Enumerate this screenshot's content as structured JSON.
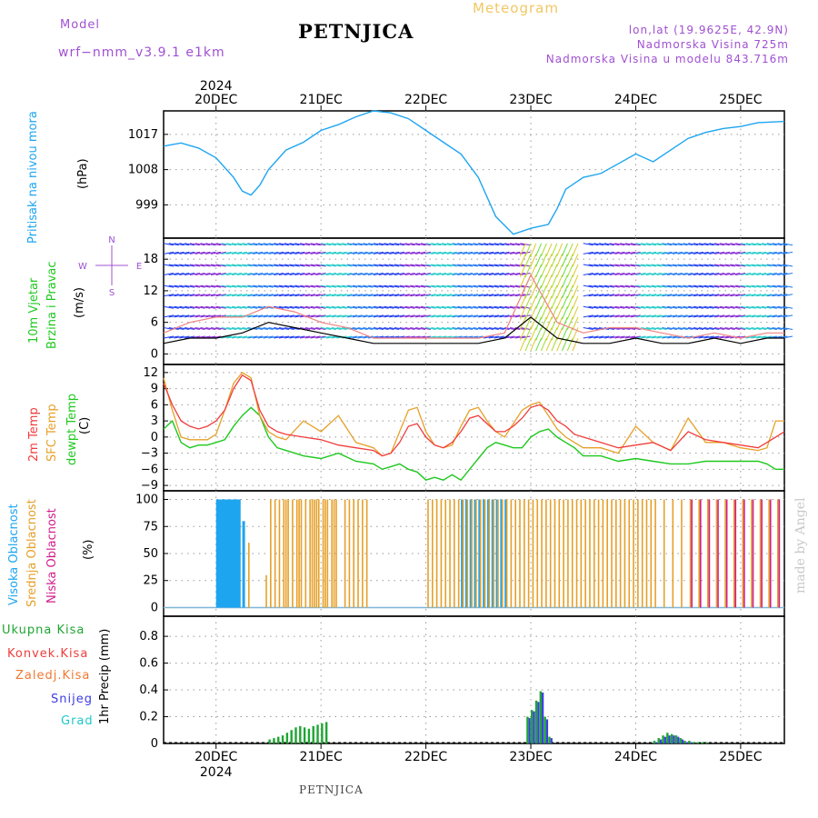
{
  "header": {
    "model_label": "Model",
    "model_name": "wrf−nmm_v3.9.1  e1km",
    "title": "PETNJICA",
    "subtitle": "Meteogram",
    "lonlat": "lon,lat (19.9625E, 42.9N)",
    "altitude": "Nadmorska Visina 725m",
    "model_altitude": "Nadmorska Visina u modelu 843.716m"
  },
  "footer": {
    "station": "PETNJICA",
    "credit": "made by Angel"
  },
  "colors": {
    "pressure": "#1ea5f0",
    "temp2m": "#f03c3c",
    "sfc": "#e6a028",
    "dewpt": "#1ec81e",
    "high_cloud": "#1ea5f0",
    "mid_cloud": "#e6a028",
    "low_cloud": "#d21e8c",
    "total_precip": "#1ea532",
    "snow": "#3c3ce6",
    "grad": "#1ec8c8",
    "conv": "#f03c3c",
    "frz": "#f07832",
    "header_purple": "#a050d2",
    "subtitle": "#f0c864"
  },
  "x_axis": {
    "year": "2024",
    "days": [
      "20DEC",
      "21DEC",
      "22DEC",
      "23DEC",
      "24DEC",
      "25DEC"
    ]
  },
  "panels": {
    "pressure": {
      "label": "Pritisak na nivou mora",
      "unit": "(hPa)",
      "ticks": [
        "1017",
        "1008",
        "999"
      ]
    },
    "wind": {
      "label1": "10m Vjetar",
      "label2": "Brzina i Pravac",
      "unit": "(m/s)",
      "ticks": [
        "18",
        "12",
        "6",
        "0"
      ],
      "compass": {
        "n": "N",
        "s": "S",
        "e": "E",
        "w": "W"
      }
    },
    "temperature": {
      "label1": "2m Temp",
      "label2": "SFC Temp",
      "label3": "dewpt Temp",
      "unit": "(C)",
      "ticks": [
        "12",
        "9",
        "6",
        "3",
        "0",
        "−3",
        "−6",
        "−9"
      ]
    },
    "clouds": {
      "label1": "Visoka Oblacnost",
      "label2": "Srednja Oblacnost",
      "label3": "Niska Oblacnost",
      "unit": "(%)",
      "ticks": [
        "100",
        "75",
        "50",
        "25",
        "0"
      ]
    },
    "precip": {
      "legend": [
        "Ukupna Kisa",
        "Konvek.Kisa",
        "Zaledj.Kisa",
        "Snijeg",
        "Grad"
      ],
      "unit": "1hr Precip (mm)",
      "ticks": [
        "0.8",
        "0.6",
        "0.4",
        "0.2",
        "0"
      ]
    }
  },
  "chart_data": [
    {
      "type": "line",
      "title": "Pritisak na nivou mora",
      "ylabel": "(hPa)",
      "ylim": [
        990.5,
        1023
      ],
      "x_hours": [
        0,
        4,
        8,
        12,
        16,
        18,
        20,
        22,
        24,
        28,
        32,
        36,
        40,
        44,
        48,
        52,
        56,
        60,
        64,
        68,
        72,
        76,
        80,
        84,
        88,
        90,
        92,
        96,
        100,
        104,
        108,
        112,
        116,
        120,
        124,
        128,
        132,
        136,
        140,
        142
      ],
      "series": [
        {
          "name": "Pritisak na nivou mora",
          "values": [
            1014,
            1014.8,
            1013.5,
            1011,
            1006,
            1002.5,
            1001.5,
            1004,
            1008,
            1013,
            1015,
            1018,
            1019.5,
            1021.5,
            1023,
            1022.5,
            1021,
            1018,
            1015,
            1012,
            1006,
            996,
            991.5,
            993,
            994,
            998,
            1003,
            1006,
            1007,
            1009.5,
            1012,
            1010,
            1013,
            1016,
            1017.5,
            1018.5,
            1019,
            1020,
            1020.2,
            1020.3
          ]
        }
      ]
    },
    {
      "type": "line",
      "title": "10m Vjetar Brzina i Pravac",
      "ylabel": "(m/s)",
      "ylim": [
        -2,
        22
      ],
      "x_hours": [
        0,
        6,
        12,
        18,
        24,
        30,
        36,
        42,
        48,
        54,
        60,
        66,
        72,
        78,
        84,
        90,
        96,
        102,
        108,
        114,
        120,
        126,
        132,
        138,
        142
      ],
      "series": [
        {
          "name": "brzina",
          "values": [
            2,
            3,
            3,
            4,
            6,
            5,
            4,
            3,
            2,
            2,
            2,
            2,
            2,
            3,
            7,
            3,
            2,
            2,
            3,
            2,
            2,
            3,
            2,
            3,
            3
          ]
        },
        {
          "name": "udari",
          "values": [
            4,
            6,
            7,
            7,
            9,
            8,
            6,
            5,
            3,
            3,
            3,
            3,
            3,
            4,
            15,
            6,
            4,
            5,
            5,
            4,
            3,
            4,
            3,
            4,
            4
          ]
        }
      ]
    },
    {
      "type": "line",
      "title": "Temperatura",
      "ylabel": "(C)",
      "ylim": [
        -10,
        13.5
      ],
      "x_hours": [
        0,
        2,
        4,
        6,
        8,
        10,
        12,
        14,
        16,
        18,
        20,
        22,
        24,
        26,
        28,
        32,
        36,
        40,
        44,
        48,
        50,
        52,
        54,
        56,
        58,
        60,
        62,
        64,
        66,
        68,
        70,
        72,
        74,
        76,
        78,
        80,
        82,
        84,
        86,
        88,
        90,
        92,
        94,
        96,
        100,
        104,
        108,
        112,
        116,
        120,
        124,
        128,
        132,
        136,
        138,
        140,
        142
      ],
      "series": [
        {
          "name": "2m Temp",
          "values": [
            10,
            6,
            3,
            2,
            1.5,
            2,
            3,
            5,
            9,
            11.5,
            10.5,
            5,
            2,
            1,
            0.5,
            0,
            -0.5,
            -1.5,
            -2,
            -2.5,
            -3.5,
            -3,
            -1,
            2,
            2.5,
            0,
            -1.5,
            -2,
            -1,
            1,
            3.5,
            4,
            2.5,
            1,
            1,
            2,
            3.5,
            5.5,
            6,
            5,
            3,
            2,
            0.5,
            0,
            -1,
            -2,
            -1.5,
            -1,
            -2.5,
            1,
            -0.5,
            -1,
            -1.5,
            -2,
            -1,
            0,
            1
          ]
        },
        {
          "name": "SFC Temp",
          "values": [
            11,
            5,
            0,
            -0.5,
            -0.5,
            -0.5,
            0.5,
            5,
            10,
            12,
            11,
            4,
            1,
            0,
            -0.5,
            3,
            1,
            4,
            -1,
            -2,
            -3.5,
            -3,
            1,
            5,
            5.5,
            1,
            -1.5,
            -2,
            -1.5,
            2,
            5,
            5.5,
            3,
            1,
            0,
            2.5,
            5,
            6,
            6.5,
            4,
            1.5,
            0,
            -1,
            -2,
            -2,
            -3,
            2,
            -1,
            -2.5,
            3.5,
            -1,
            -1,
            -2,
            -2.5,
            -2,
            3,
            3
          ]
        },
        {
          "name": "dewpt Temp",
          "values": [
            1.5,
            3,
            -1,
            -2,
            -1.5,
            -1.5,
            -1,
            -0.5,
            2,
            4,
            5.5,
            4,
            0,
            -2,
            -2.5,
            -3.5,
            -4,
            -3,
            -4.5,
            -5,
            -6,
            -5.5,
            -5,
            -6,
            -6.5,
            -8,
            -7.5,
            -8,
            -7,
            -8,
            -6,
            -4,
            -2,
            -1,
            -1.5,
            -2,
            -2,
            0,
            1,
            1.5,
            0,
            -1,
            -2,
            -3.5,
            -3.5,
            -4.5,
            -4,
            -4.5,
            -5,
            -5,
            -4.5,
            -4.5,
            -4.5,
            -4.5,
            -5,
            -6,
            -6
          ]
        }
      ]
    },
    {
      "type": "bar",
      "title": "Oblacnost",
      "ylabel": "(%)",
      "ylim": [
        -8,
        108
      ],
      "x_hours": [
        12,
        12.5,
        13,
        13.5,
        14,
        14.5,
        15,
        15.5,
        16,
        16.5,
        17,
        18,
        18.5,
        19,
        21,
        23,
        24,
        25,
        26,
        27,
        27.5,
        28,
        29,
        30,
        30.5,
        31,
        32,
        33,
        33.5,
        34,
        34.5,
        35,
        36,
        36.5,
        37,
        38,
        38.5,
        39,
        41,
        42,
        43,
        44,
        45,
        46,
        60,
        61,
        62,
        63,
        64,
        65,
        66,
        67,
        68,
        69,
        70,
        71,
        72,
        73,
        74,
        75,
        76,
        77,
        78,
        79,
        80,
        81,
        82,
        83,
        84,
        85,
        86,
        87,
        88,
        89,
        90,
        91,
        92,
        93,
        94,
        95,
        96,
        97,
        98,
        99,
        100,
        101,
        102,
        103,
        104,
        105,
        106,
        107,
        108,
        109,
        110,
        111,
        112,
        114,
        116,
        118,
        120,
        122,
        124,
        126,
        128,
        130,
        132,
        134,
        136,
        138,
        140
      ],
      "series": [
        {
          "name": "Visoka Oblacnost",
          "values": [
            100,
            100,
            100,
            100,
            100,
            100,
            100,
            100,
            100,
            100,
            100,
            80,
            0,
            0,
            0,
            0,
            0,
            0,
            0,
            0,
            0,
            0,
            0,
            0,
            0,
            0,
            0,
            0,
            0,
            0,
            0,
            0,
            0,
            0,
            0,
            0,
            0,
            0,
            0,
            0,
            0,
            0,
            0,
            0,
            0,
            0,
            0,
            0,
            0,
            0,
            0,
            0,
            100,
            100,
            100,
            100,
            100,
            100,
            100,
            100,
            100,
            100,
            100,
            0,
            0,
            0,
            0,
            0,
            0,
            0,
            0,
            0,
            0,
            0,
            0,
            0,
            0,
            0,
            0,
            0,
            0,
            0,
            0,
            0,
            0,
            0,
            0,
            0,
            0,
            0,
            0,
            0,
            0,
            0,
            0,
            0,
            0,
            0,
            0,
            0,
            0,
            0,
            0,
            0,
            0,
            0,
            0,
            0,
            0,
            0,
            0
          ]
        },
        {
          "name": "Srednja Oblacnost",
          "values": [
            0,
            0,
            0,
            0,
            0,
            0,
            0,
            0,
            0,
            0,
            0,
            0,
            0,
            60,
            0,
            30,
            100,
            100,
            100,
            100,
            100,
            100,
            100,
            100,
            100,
            100,
            100,
            100,
            100,
            100,
            100,
            100,
            100,
            100,
            100,
            100,
            100,
            100,
            100,
            100,
            100,
            100,
            100,
            100,
            100,
            100,
            100,
            100,
            100,
            100,
            100,
            100,
            100,
            100,
            100,
            100,
            100,
            100,
            100,
            100,
            100,
            100,
            100,
            100,
            100,
            100,
            100,
            100,
            100,
            100,
            100,
            100,
            100,
            100,
            100,
            100,
            100,
            100,
            100,
            100,
            100,
            100,
            100,
            100,
            100,
            100,
            100,
            100,
            100,
            100,
            100,
            100,
            100,
            100,
            100,
            100,
            100,
            100,
            100,
            100,
            100,
            100,
            100,
            100,
            100,
            100,
            100,
            100,
            100,
            100,
            100
          ]
        },
        {
          "name": "Niska Oblacnost",
          "values": [
            0,
            0,
            0,
            0,
            0,
            0,
            0,
            0,
            0,
            0,
            0,
            0,
            0,
            0,
            0,
            0,
            0,
            0,
            0,
            0,
            0,
            0,
            0,
            0,
            0,
            0,
            0,
            0,
            0,
            0,
            0,
            0,
            0,
            0,
            0,
            0,
            0,
            0,
            0,
            0,
            0,
            0,
            0,
            0,
            0,
            0,
            0,
            0,
            0,
            0,
            0,
            0,
            0,
            0,
            0,
            0,
            0,
            0,
            0,
            0,
            0,
            0,
            0,
            0,
            0,
            0,
            0,
            0,
            0,
            0,
            0,
            0,
            0,
            0,
            0,
            0,
            0,
            0,
            0,
            0,
            0,
            0,
            0,
            0,
            0,
            0,
            0,
            0,
            0,
            0,
            0,
            0,
            0,
            0,
            0,
            0,
            0,
            0,
            0,
            0,
            100,
            100,
            100,
            100,
            100,
            100,
            100,
            100,
            100,
            100,
            100
          ]
        }
      ]
    },
    {
      "type": "bar",
      "title": "1hr Precip",
      "ylabel": "1hr Precip (mm)",
      "ylim": [
        0,
        0.95
      ],
      "x_hours": [
        24,
        25,
        26,
        27,
        28,
        29,
        30,
        31,
        32,
        33,
        34,
        35,
        36,
        37,
        83,
        84,
        85,
        86,
        87,
        88,
        112,
        113,
        114,
        115,
        116,
        117,
        118,
        119,
        120,
        121,
        122,
        123,
        124
      ],
      "series": [
        {
          "name": "Ukupna Kisa",
          "values": [
            0.03,
            0.04,
            0.05,
            0.06,
            0.08,
            0.1,
            0.12,
            0.13,
            0.12,
            0.11,
            0.13,
            0.14,
            0.15,
            0.16,
            0.2,
            0.25,
            0.32,
            0.39,
            0.2,
            0.05,
            0.02,
            0.04,
            0.06,
            0.08,
            0.07,
            0.06,
            0.04,
            0.02,
            0.02,
            0.01,
            0.01,
            0.01,
            0.01
          ]
        },
        {
          "name": "Snijeg",
          "values": [
            0,
            0,
            0,
            0,
            0,
            0,
            0,
            0,
            0,
            0,
            0,
            0,
            0,
            0,
            0.19,
            0.24,
            0.31,
            0.38,
            0.18,
            0.04,
            0.01,
            0.03,
            0.05,
            0.06,
            0.06,
            0.05,
            0.03,
            0.01,
            0.01,
            0,
            0,
            0,
            0
          ]
        }
      ]
    }
  ]
}
